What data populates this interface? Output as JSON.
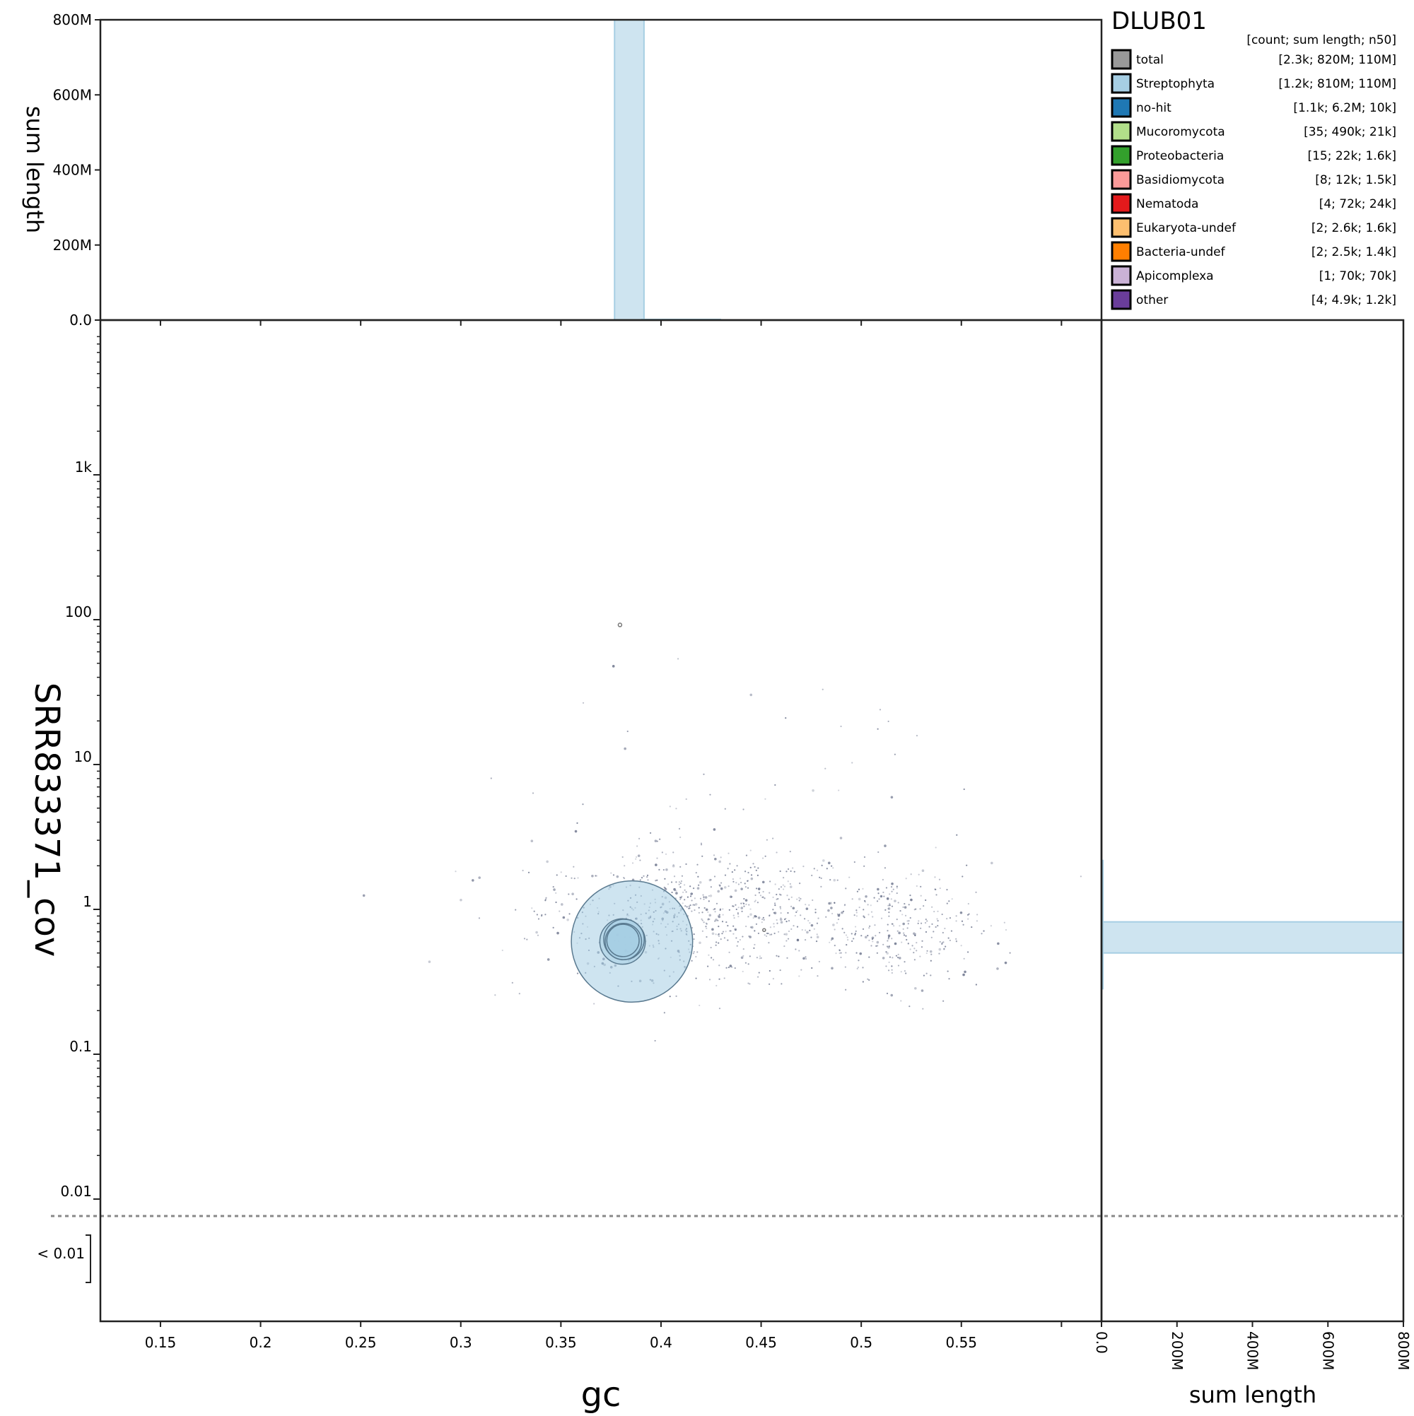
{
  "title": "DLUB01",
  "legend": {
    "header": "[count; sum length; n50]",
    "entries": [
      {
        "name": "total",
        "stats": "[2.3k; 820M; 110M]",
        "color": "#999999"
      },
      {
        "name": "Streptophyta",
        "stats": "[1.2k; 810M; 110M]",
        "color": "#a6cee3"
      },
      {
        "name": "no-hit",
        "stats": "[1.1k; 6.2M; 10k]",
        "color": "#1f78b4"
      },
      {
        "name": "Mucoromycota",
        "stats": "[35; 490k; 21k]",
        "color": "#b2df8a"
      },
      {
        "name": "Proteobacteria",
        "stats": "[15; 22k; 1.6k]",
        "color": "#33a02c"
      },
      {
        "name": "Basidiomycota",
        "stats": "[8; 12k; 1.5k]",
        "color": "#fb9a99"
      },
      {
        "name": "Nematoda",
        "stats": "[4; 72k; 24k]",
        "color": "#e31a1c"
      },
      {
        "name": "Eukaryota-undef",
        "stats": "[2; 2.6k; 1.6k]",
        "color": "#fdbf6f"
      },
      {
        "name": "Bacteria-undef",
        "stats": "[2; 2.5k; 1.4k]",
        "color": "#ff7f00"
      },
      {
        "name": "Apicomplexa",
        "stats": "[1; 70k; 70k]",
        "color": "#cab2d6"
      },
      {
        "name": "other",
        "stats": "[4; 4.9k; 1.2k]",
        "color": "#6a3d9a"
      }
    ]
  },
  "chart_data": {
    "type": "scatter",
    "xlabel": "gc",
    "ylabel": "SRR833371_cov",
    "xlim": [
      0.12,
      0.62
    ],
    "y_scale": "log",
    "ylim": [
      0.01,
      8000
    ],
    "x_ticks": [
      {
        "v": 0.15,
        "label": "0.15"
      },
      {
        "v": 0.2,
        "label": "0.2"
      },
      {
        "v": 0.25,
        "label": "0.25"
      },
      {
        "v": 0.3,
        "label": "0.3"
      },
      {
        "v": 0.35,
        "label": "0.35"
      },
      {
        "v": 0.4,
        "label": "0.4"
      },
      {
        "v": 0.45,
        "label": "0.45"
      },
      {
        "v": 0.5,
        "label": "0.5"
      },
      {
        "v": 0.55,
        "label": "0.55"
      }
    ],
    "y_ticks": [
      {
        "v": 0.01,
        "label": "0.01"
      },
      {
        "v": 0.1,
        "label": "0.1"
      },
      {
        "v": 1,
        "label": "1"
      },
      {
        "v": 10,
        "label": "10"
      },
      {
        "v": 100,
        "label": "100"
      },
      {
        "v": 1000,
        "label": "1k"
      }
    ],
    "below_threshold_label": "< 0.01",
    "top_histogram": {
      "ylabel": "sum length",
      "ylim": [
        0,
        800000000
      ],
      "ticks": [
        {
          "v": 0,
          "label": "0.0"
        },
        {
          "v": 200000000,
          "label": "200M"
        },
        {
          "v": 400000000,
          "label": "400M"
        },
        {
          "v": 600000000,
          "label": "600M"
        },
        {
          "v": 800000000,
          "label": "800M"
        }
      ],
      "bins": [
        {
          "x0": 0.3768,
          "x1": 0.3915,
          "value": 800000000,
          "series": "Streptophyta"
        }
      ]
    },
    "right_histogram": {
      "xlabel": "sum length",
      "xlim": [
        0,
        800000000
      ],
      "ticks": [
        {
          "v": 0,
          "label": "0.0"
        },
        {
          "v": 200000000,
          "label": "200M"
        },
        {
          "v": 400000000,
          "label": "400M"
        },
        {
          "v": 600000000,
          "label": "600M"
        },
        {
          "v": 800000000,
          "label": "800M"
        }
      ],
      "bins": [
        {
          "y0": 0.5,
          "y1": 0.82,
          "value": 800000000,
          "series": "Streptophyta"
        }
      ]
    },
    "highlight_points": [
      {
        "x": 0.3855,
        "y": 0.6,
        "size": 120,
        "series": "Streptophyta"
      },
      {
        "x": 0.3808,
        "y": 0.6,
        "size": 45,
        "series": "Streptophyta"
      },
      {
        "x": 0.3815,
        "y": 0.62,
        "size": 40,
        "series": "Streptophyta"
      },
      {
        "x": 0.3812,
        "y": 0.6,
        "size": 36,
        "series": "Streptophyta"
      },
      {
        "x": 0.381,
        "y": 0.61,
        "size": 32,
        "series": "Streptophyta"
      },
      {
        "x": 0.3795,
        "y": 92,
        "size": 2.5,
        "series": "no-hit"
      },
      {
        "x": 0.4515,
        "y": 0.72,
        "size": 2,
        "series": "no-hit"
      }
    ],
    "scatter_clusters": [
      {
        "series": "no-hit",
        "gc_center": 0.42,
        "cov_center": 0.95,
        "gc_sd": 0.04,
        "cov_sd_decades": 0.22,
        "n": 700
      },
      {
        "series": "no-hit",
        "gc_center": 0.52,
        "cov_center": 0.7,
        "gc_sd": 0.02,
        "cov_sd_decades": 0.2,
        "n": 300
      },
      {
        "series": "no-hit",
        "gc_center": 0.4,
        "cov_center": 3,
        "gc_sd": 0.08,
        "cov_sd_decades": 0.6,
        "n": 80
      }
    ]
  }
}
